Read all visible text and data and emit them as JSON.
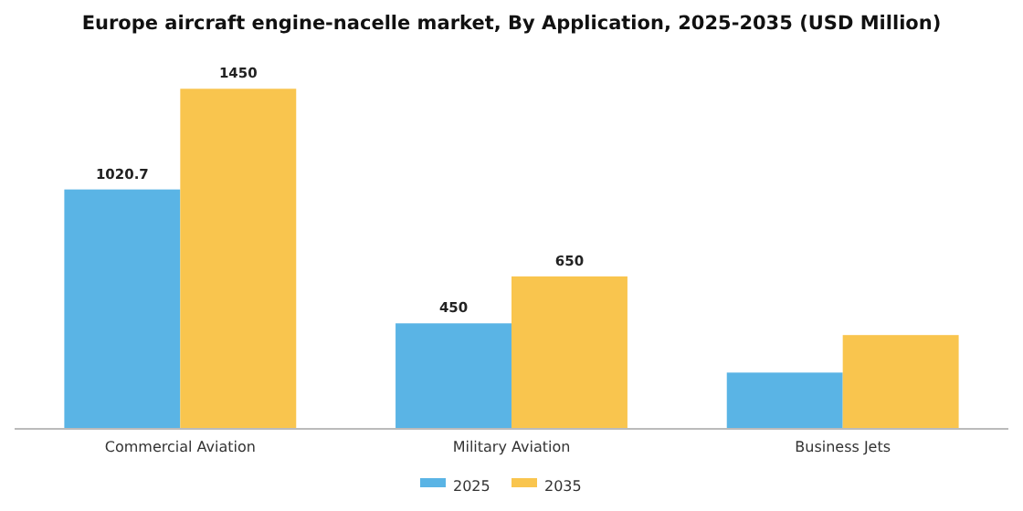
{
  "chart_data": {
    "type": "bar",
    "title": "Europe aircraft engine-nacelle market, By Application, 2025-2035 (USD Million)",
    "categories": [
      "Commercial Aviation",
      "Military Aviation",
      "Business Jets"
    ],
    "series": [
      {
        "name": "2025",
        "color": "#5ab4e5",
        "values": [
          1020.7,
          450,
          240
        ],
        "value_labels": [
          "1020.7",
          "450",
          null
        ]
      },
      {
        "name": "2035",
        "color": "#f9c54e",
        "values": [
          1450,
          650,
          400
        ],
        "value_labels": [
          "1450",
          "650",
          null
        ]
      }
    ],
    "legend": "bottom"
  }
}
